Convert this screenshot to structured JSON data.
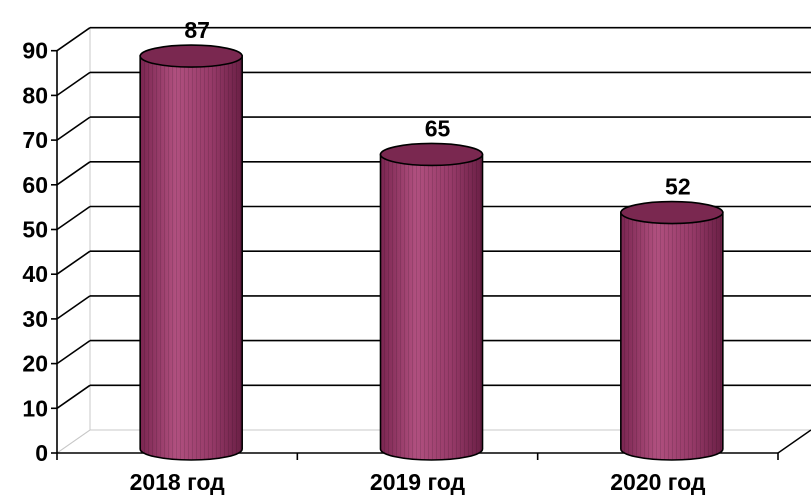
{
  "chart_data": {
    "type": "bar",
    "title": "",
    "xlabel": "",
    "ylabel": "",
    "categories": [
      "2018 год",
      "2019 год",
      "2020 год"
    ],
    "values": [
      87,
      65,
      52
    ],
    "ylim": [
      0,
      90
    ],
    "yticks": [
      0,
      10,
      20,
      30,
      40,
      50,
      60,
      70,
      80,
      90
    ],
    "grid": true,
    "legend": "none",
    "bar_shape": "cylinder",
    "bar_color": "#9b3a6a",
    "bar_top_color": "#7a2850"
  }
}
